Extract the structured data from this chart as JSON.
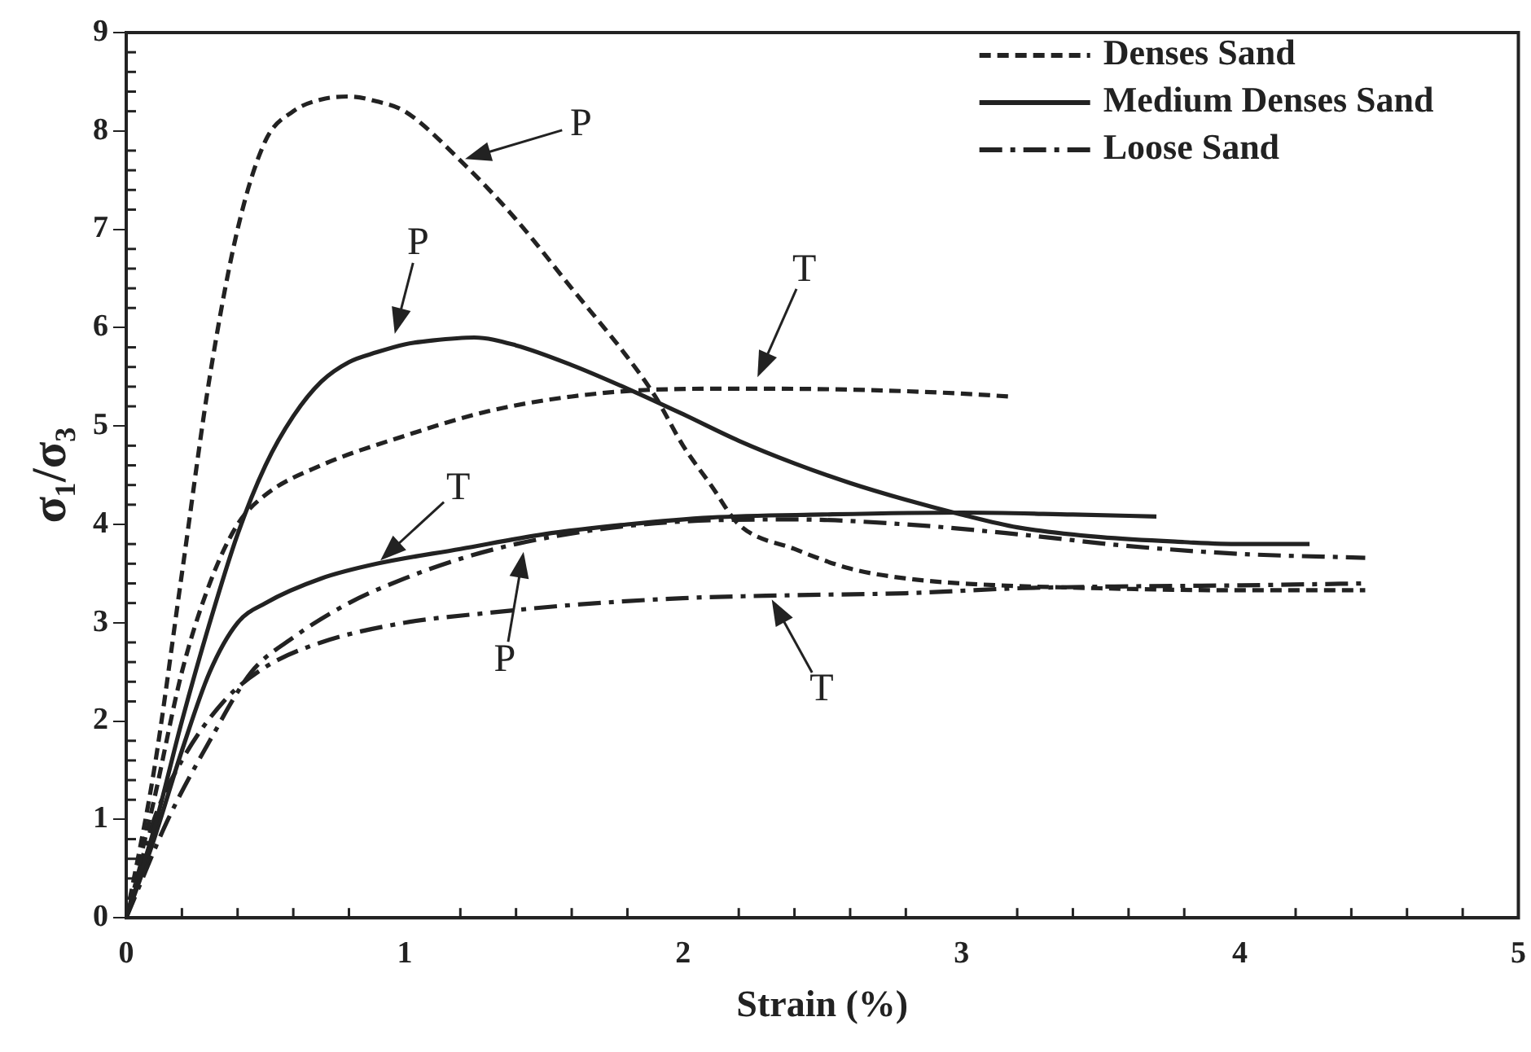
{
  "chart_data": {
    "type": "line",
    "xlabel": "Strain (%)",
    "ylabel": "σ₁/σ₃",
    "xlim": [
      0,
      5
    ],
    "xticks": [
      0,
      1,
      2,
      3,
      4,
      5
    ],
    "ylim": [
      0,
      9
    ],
    "yticks": [
      0,
      1,
      2,
      3,
      4,
      5,
      6,
      7,
      8,
      9
    ],
    "grid": false,
    "legend": "top right",
    "marker": "none",
    "series": [
      {
        "name": "Denses Sand",
        "color": "#222222",
        "line_style": "dotted",
        "x": [
          0,
          0.1,
          0.2,
          0.3,
          0.4,
          0.5,
          0.6,
          0.7,
          0.8,
          0.9,
          1.0,
          1.2,
          1.4,
          1.6,
          1.8,
          1.9,
          2.0,
          2.1,
          2.2,
          2.4,
          2.6,
          2.8,
          3.0,
          3.5,
          4.0,
          4.45
        ],
        "values": [
          0,
          1.5,
          3.5,
          5.5,
          7.0,
          7.9,
          8.2,
          8.32,
          8.35,
          8.3,
          8.2,
          7.7,
          7.1,
          6.4,
          5.7,
          5.3,
          4.8,
          4.4,
          4.0,
          3.75,
          3.55,
          3.45,
          3.4,
          3.35,
          3.33,
          3.33
        ]
      },
      {
        "color": "#222222",
        "line_style": "dotted",
        "x": [
          0,
          0.1,
          0.2,
          0.3,
          0.4,
          0.5,
          0.7,
          1.0,
          1.3,
          1.6,
          1.9,
          2.2,
          2.6,
          3.0,
          3.17
        ],
        "values": [
          0,
          1.2,
          2.5,
          3.4,
          4.0,
          4.3,
          4.6,
          4.9,
          5.15,
          5.3,
          5.37,
          5.38,
          5.37,
          5.33,
          5.3
        ]
      },
      {
        "name": "Medium Denses Sand",
        "color": "#222222",
        "line_style": "solid",
        "x": [
          0,
          0.1,
          0.2,
          0.3,
          0.4,
          0.5,
          0.6,
          0.7,
          0.8,
          0.9,
          1.0,
          1.1,
          1.25,
          1.4,
          1.6,
          1.8,
          2.0,
          2.2,
          2.4,
          2.6,
          2.8,
          3.0,
          3.2,
          3.5,
          3.8,
          4.0,
          4.25
        ],
        "values": [
          0,
          0.9,
          2.0,
          3.0,
          3.9,
          4.6,
          5.1,
          5.45,
          5.65,
          5.75,
          5.83,
          5.87,
          5.9,
          5.82,
          5.62,
          5.38,
          5.12,
          4.85,
          4.62,
          4.42,
          4.25,
          4.1,
          3.97,
          3.87,
          3.82,
          3.8,
          3.8
        ]
      },
      {
        "color": "#222222",
        "line_style": "solid",
        "x": [
          0,
          0.1,
          0.2,
          0.3,
          0.4,
          0.5,
          0.7,
          0.9,
          1.2,
          1.5,
          1.8,
          2.1,
          2.5,
          3.0,
          3.4,
          3.7
        ],
        "values": [
          0,
          0.8,
          1.7,
          2.5,
          3.0,
          3.2,
          3.45,
          3.6,
          3.75,
          3.9,
          4.0,
          4.07,
          4.1,
          4.12,
          4.1,
          4.08
        ]
      },
      {
        "name": "Loose Sand",
        "color": "#222222",
        "line_style": "dashed",
        "x": [
          0,
          0.15,
          0.3,
          0.45,
          0.6,
          0.8,
          1.0,
          1.2,
          1.4,
          1.7,
          2.0,
          2.4,
          2.8,
          3.2,
          3.6,
          4.0,
          4.45
        ],
        "values": [
          0,
          1.0,
          1.8,
          2.5,
          2.85,
          3.2,
          3.45,
          3.65,
          3.8,
          3.95,
          4.03,
          4.05,
          4.0,
          3.9,
          3.78,
          3.7,
          3.66
        ]
      },
      {
        "color": "#222222",
        "line_style": "dashed",
        "x": [
          0,
          0.1,
          0.2,
          0.35,
          0.5,
          0.7,
          1.0,
          1.3,
          1.6,
          2.0,
          2.4,
          2.8,
          3.2,
          3.6,
          4.0,
          4.45
        ],
        "values": [
          0,
          1.0,
          1.6,
          2.2,
          2.55,
          2.8,
          3.0,
          3.1,
          3.18,
          3.25,
          3.28,
          3.3,
          3.35,
          3.37,
          3.38,
          3.4
        ]
      }
    ],
    "annotations": [
      {
        "text": "P",
        "x": 1.2,
        "y": 7.7
      },
      {
        "text": "P",
        "x": 0.96,
        "y": 5.89
      },
      {
        "text": "T",
        "x": 2.26,
        "y": 5.45
      },
      {
        "text": "T",
        "x": 0.9,
        "y": 3.6
      },
      {
        "text": "P",
        "x": 1.43,
        "y": 3.77
      },
      {
        "text": "T",
        "x": 2.31,
        "y": 3.28
      }
    ]
  }
}
